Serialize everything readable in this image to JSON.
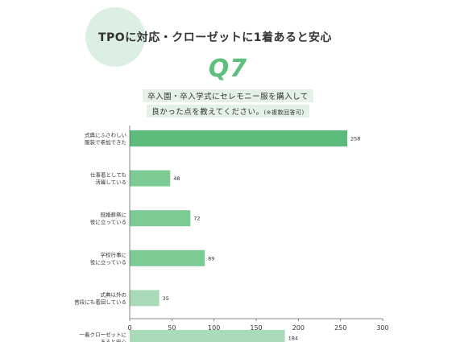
{
  "header": {
    "title": "TPOに対応・クローゼットに1着あると安心"
  },
  "question": {
    "number": "Q7",
    "line1": "卒入園・卒入学式にセレモニー服を購入して",
    "line2": "良かった点を教えてください。",
    "note": "(※複数回答可)"
  },
  "colors": {
    "circle": "#dcefe3",
    "accent": "#5fbf7f",
    "highlight": "#e3f1e7",
    "bar_strong": "#5cba7a",
    "bar_medium": "#7ccb94",
    "bar_light": "#a9dbb9"
  },
  "chart_data": {
    "type": "bar",
    "orientation": "horizontal",
    "categories": [
      [
        "式典にふさわしい",
        "服装で参加できた"
      ],
      [
        "仕事着としても",
        "活躍している"
      ],
      [
        "冠婚葬祭に",
        "役に立っている"
      ],
      [
        "学校行事に",
        "役に立っている"
      ],
      [
        "式典以外の",
        "普段にも着回している"
      ],
      [
        "一着クローゼットに",
        "あると安心"
      ]
    ],
    "values": [
      258,
      48,
      72,
      89,
      35,
      184
    ],
    "bar_shades": [
      "bar_strong",
      "bar_medium",
      "bar_medium",
      "bar_medium",
      "bar_light",
      "bar_light"
    ],
    "xlim": [
      0,
      300
    ],
    "ticks": [
      0,
      50,
      100,
      150,
      200,
      250,
      300
    ],
    "grid": false
  }
}
